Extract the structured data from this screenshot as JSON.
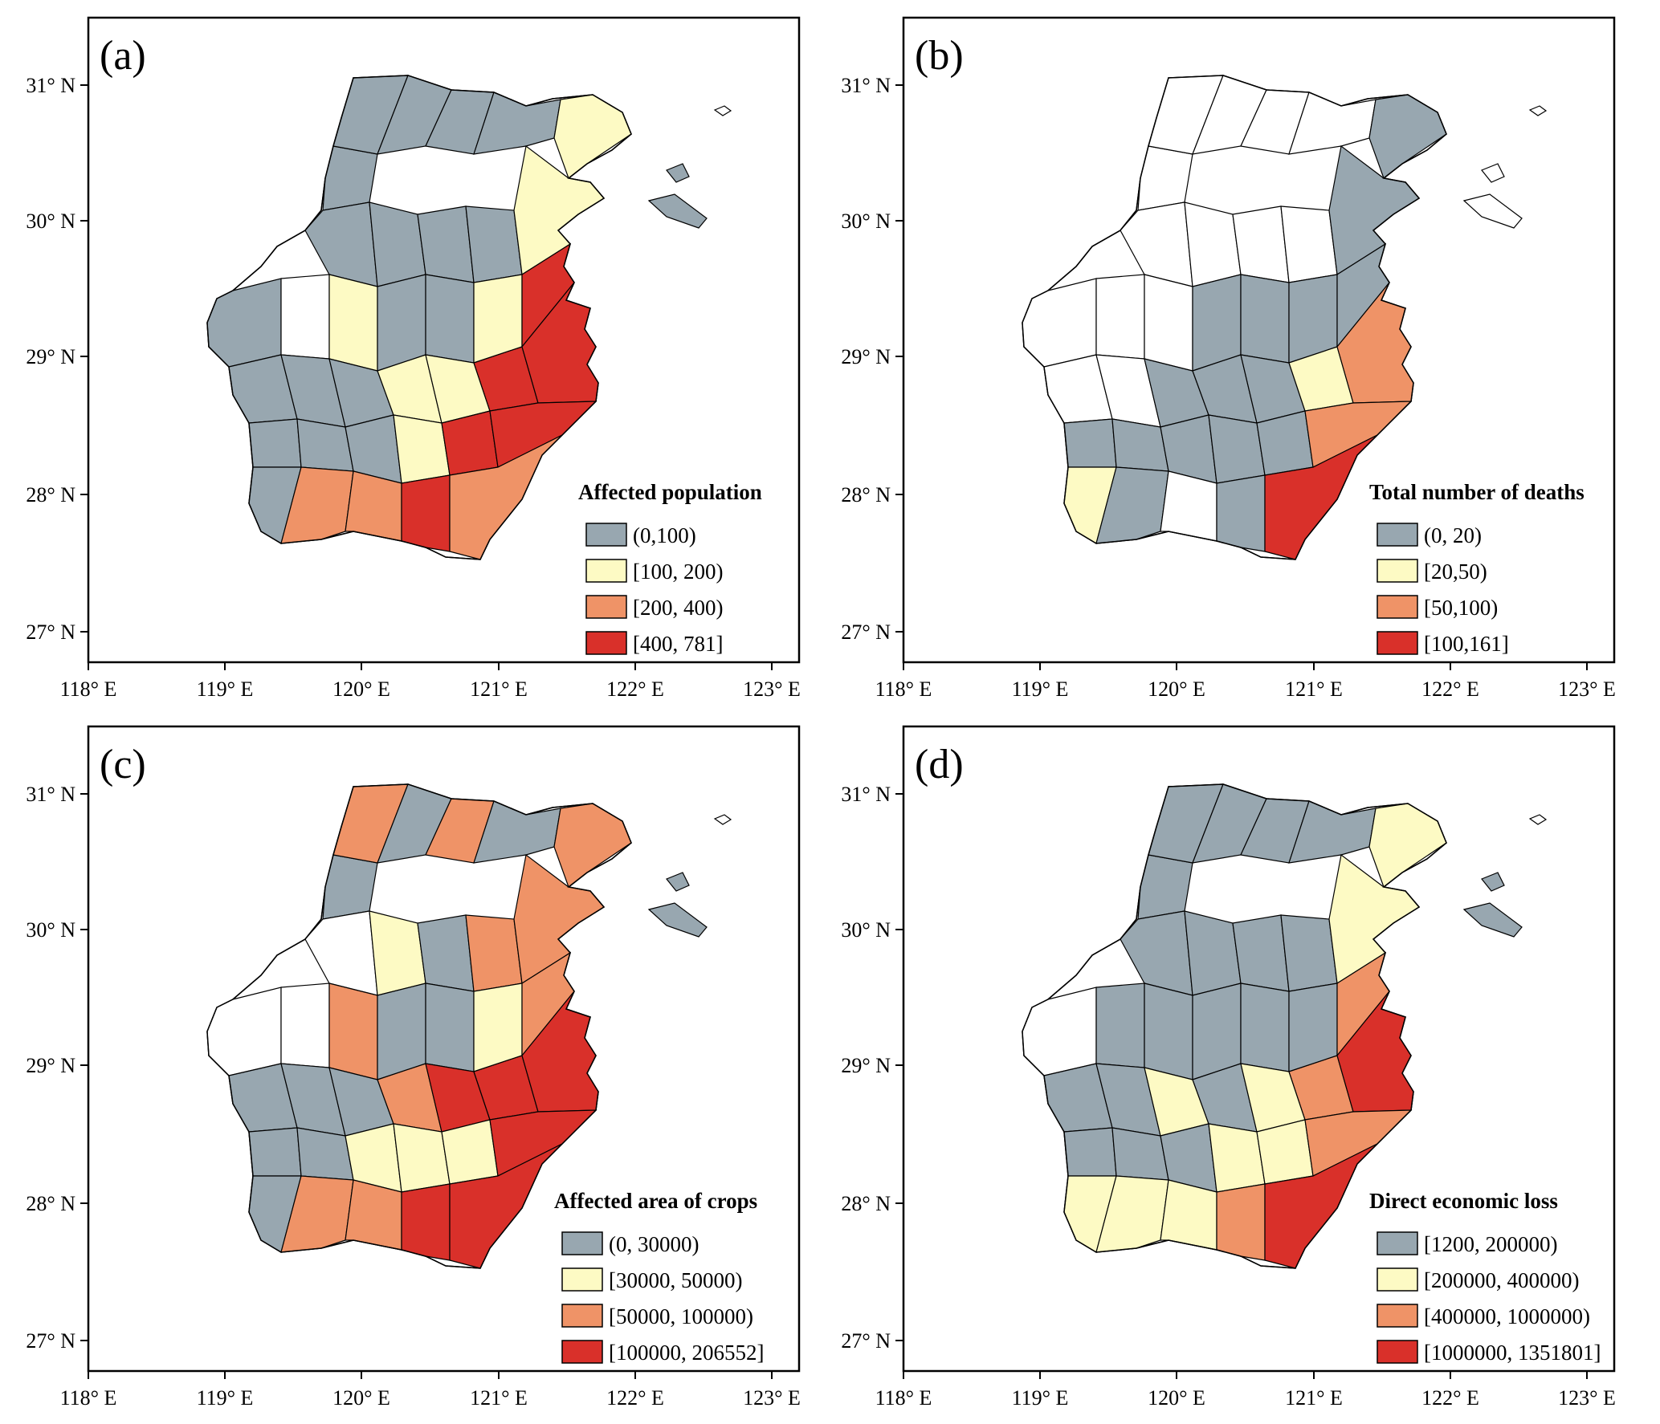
{
  "figure": {
    "colors": {
      "class1": "#98a7b0",
      "class2": "#fdfac4",
      "class3": "#ef9367",
      "class4": "#d9302a",
      "nodata": "#ffffff",
      "border": "#000000"
    },
    "axes": {
      "x_ticks": [
        "118° E",
        "119° E",
        "120° E",
        "121° E",
        "122° E",
        "123° E"
      ],
      "y_ticks": [
        "27° N",
        "28° N",
        "29° N",
        "30° N",
        "31° N"
      ]
    },
    "panels": [
      {
        "label": "(a)",
        "legend_title": "Affected population",
        "legend_items": [
          "(0,100)",
          "[100, 200)",
          "[200, 400)",
          "[400, 781]"
        ]
      },
      {
        "label": "(b)",
        "legend_title": "Total number of deaths",
        "legend_items": [
          "(0, 20)",
          "[20,50)",
          "[50,100)",
          "[100,161]"
        ]
      },
      {
        "label": "(c)",
        "legend_title": "Affected area of crops",
        "legend_items": [
          "(0, 30000)",
          "[30000, 50000)",
          "[50000, 100000)",
          "[100000, 206552]"
        ]
      },
      {
        "label": "(d)",
        "legend_title": "Direct economic loss",
        "legend_items": [
          "[1200, 200000)",
          "[200000, 400000)",
          "[400000, 1000000)",
          "[1000000, 1351801]"
        ]
      }
    ]
  }
}
